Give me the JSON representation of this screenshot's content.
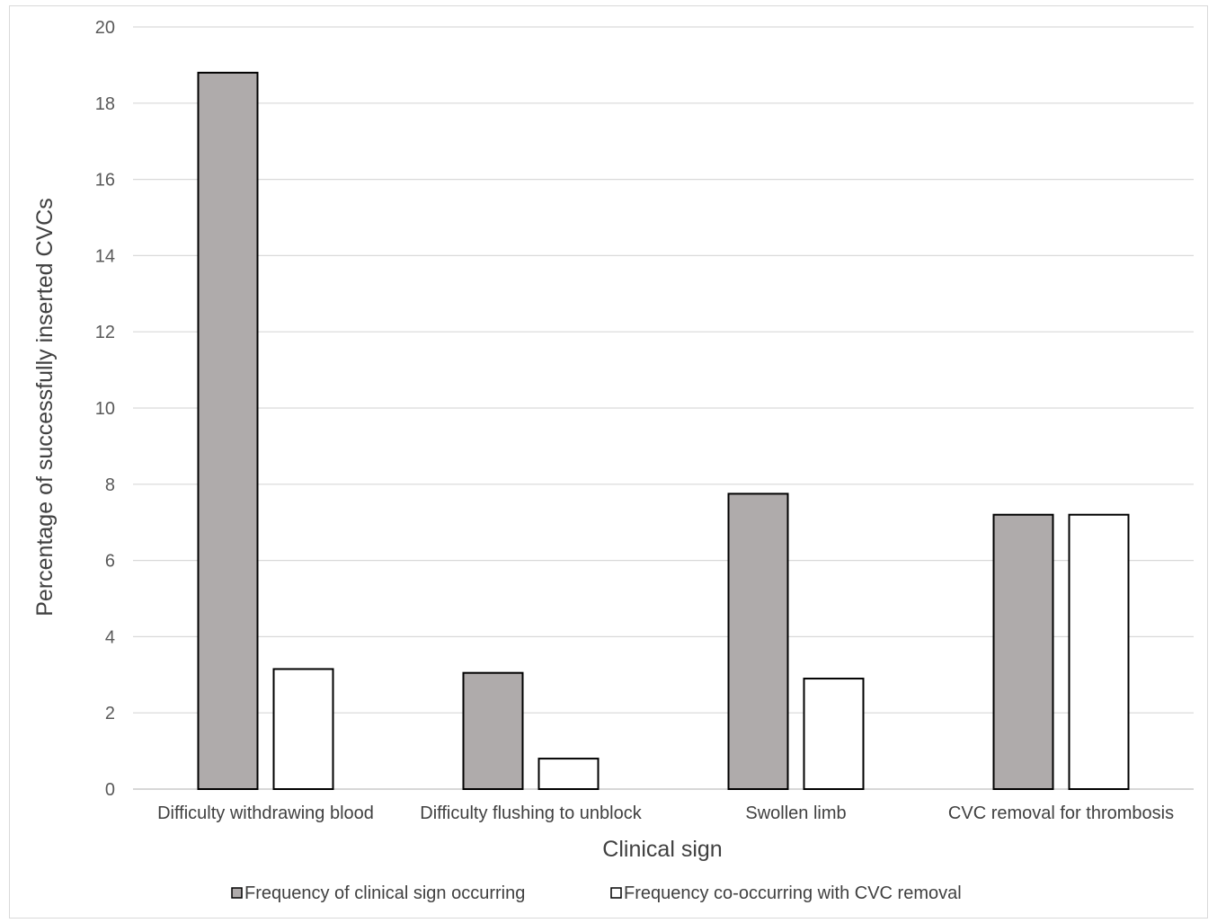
{
  "chart_data": {
    "type": "bar",
    "title": "",
    "xlabel": "Clinical sign",
    "ylabel": "Percentage of successfully inserted CVCs",
    "ylim": [
      0,
      20
    ],
    "yticks": [
      0,
      2,
      4,
      6,
      8,
      10,
      12,
      14,
      16,
      18,
      20
    ],
    "grid": true,
    "legend_position": "bottom",
    "categories": [
      "Difficulty withdrawing blood",
      "Difficulty flushing to unblock",
      "Swollen limb",
      "CVC removal for thrombosis"
    ],
    "series": [
      {
        "name": "Frequency of clinical sign occurring",
        "color": "#afabab",
        "values": [
          18.8,
          3.05,
          7.75,
          7.2
        ]
      },
      {
        "name": "Frequency co-occurring with CVC removal",
        "color": "#ffffff",
        "values": [
          3.15,
          0.8,
          2.9,
          7.2
        ]
      }
    ]
  }
}
